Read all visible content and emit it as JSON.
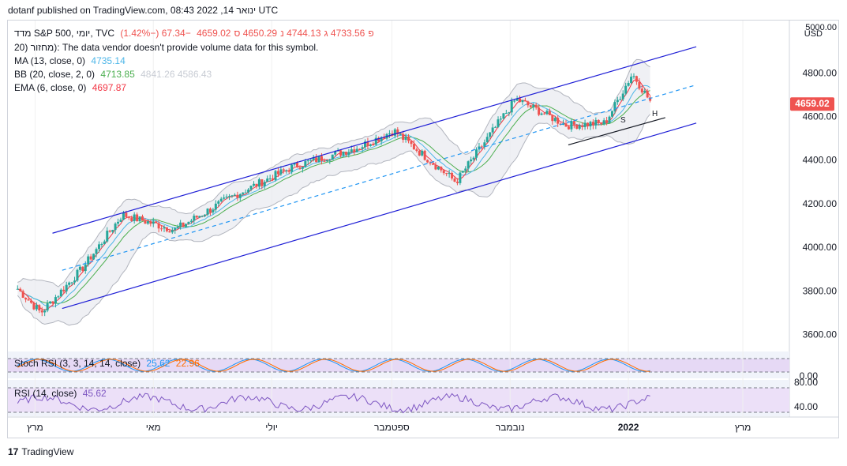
{
  "header": {
    "published": "dotanf published on TradingView.com, 08:43 2022 ,14 ינואר UTC"
  },
  "legend": {
    "symbol_line": {
      "name": "מדד S&P 500, יומי, TVC",
      "o_label": "פ",
      "o": "4733.56",
      "h_label": "ג",
      "h": "4744.13",
      "l_label": "נ",
      "l": "4650.29",
      "c_label": "ס",
      "c": "4659.02",
      "change": "−67.34 (−1.42%)"
    },
    "volume_line": "20) מחזור): The data vendor doesn't provide volume data for this symbol.",
    "ma": {
      "label": "MA (13, close, 0)",
      "value": "4735.14"
    },
    "bb": {
      "label": "BB (20, close, 2, 0)",
      "value": "4713.85",
      "faded": "4841.26  4586.43"
    },
    "ema": {
      "label": "EMA (6, close, 0)",
      "value": "4697.87"
    },
    "stoch": {
      "label": "Stoch RSI (3, 3, 14, 14, close)",
      "k": "25.62",
      "d": "22.96"
    },
    "rsi": {
      "label": "RSI (14, close)",
      "value": "45.62"
    }
  },
  "price_axis": {
    "currency": "USD",
    "top_label": "5000.00",
    "ticks": [
      "4800.00",
      "4600.00",
      "4400.00",
      "4200.00",
      "4000.00",
      "3800.00",
      "3600.00"
    ],
    "last_price": "4659.02"
  },
  "stoch_axis": {
    "ticks": [
      "80.00",
      "0.00"
    ]
  },
  "rsi_axis": {
    "ticks": [
      "80.00",
      "40.00"
    ]
  },
  "time_axis": {
    "labels": [
      "מרץ",
      "מאי",
      "יולי",
      "ספטמבר",
      "נובמבר",
      "2022",
      "מרץ"
    ]
  },
  "annotations": {
    "s": "S",
    "h": "H"
  },
  "footer": {
    "brand": "TradingView",
    "logo": "17"
  },
  "colors": {
    "up": "#26a69a",
    "down": "#ef5350",
    "channel": "#1f1fd6",
    "midline": "#2196f3",
    "ma": "#4db6e8",
    "bb_basis": "#4caf50",
    "ema": "#f23645",
    "stoch_k": "#2196f3",
    "stoch_d": "#ff6d00",
    "rsi": "#7e57c2"
  },
  "chart_data": {
    "type": "candlestick",
    "symbol": "S&P 500",
    "y_range": [
      3530,
      5040
    ],
    "x_range_months": [
      "2021-02",
      "2022-03"
    ],
    "anchors": [
      {
        "date": "2021-02-20",
        "close": 3810
      },
      {
        "date": "2021-03-04",
        "close": 3700
      },
      {
        "date": "2021-03-25",
        "close": 3900
      },
      {
        "date": "2021-04-15",
        "close": 4150
      },
      {
        "date": "2021-05-12",
        "close": 4080
      },
      {
        "date": "2021-06-10",
        "close": 4230
      },
      {
        "date": "2021-07-12",
        "close": 4370
      },
      {
        "date": "2021-08-15",
        "close": 4460
      },
      {
        "date": "2021-09-02",
        "close": 4535
      },
      {
        "date": "2021-10-04",
        "close": 4300
      },
      {
        "date": "2021-11-04",
        "close": 4680
      },
      {
        "date": "2021-11-30",
        "close": 4560
      },
      {
        "date": "2021-12-20",
        "close": 4570
      },
      {
        "date": "2022-01-03",
        "close": 4796
      },
      {
        "date": "2022-01-13",
        "close": 4659
      }
    ],
    "channel": {
      "upper": [
        {
          "date": "2021-03-10",
          "price": 4065
        },
        {
          "date": "2022-02-05",
          "price": 4920
        }
      ],
      "lower": [
        {
          "date": "2021-03-15",
          "price": 3720
        },
        {
          "date": "2022-02-05",
          "price": 4570
        }
      ],
      "mid": [
        {
          "date": "2021-03-15",
          "price": 3895
        },
        {
          "date": "2022-02-05",
          "price": 4745
        }
      ]
    },
    "neckline": [
      {
        "date": "2021-12-01",
        "price": 4470
      },
      {
        "date": "2022-01-20",
        "price": 4595
      }
    ]
  }
}
